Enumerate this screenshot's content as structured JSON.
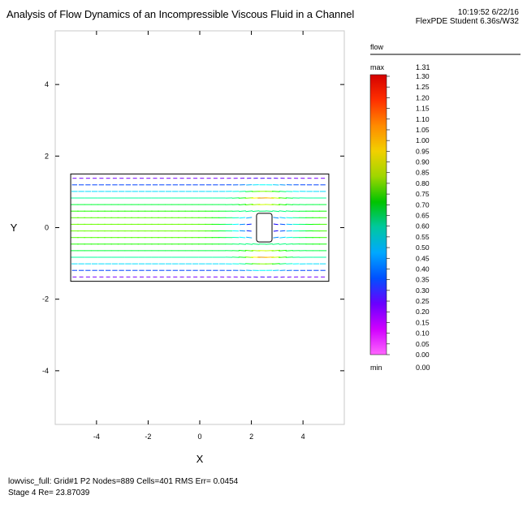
{
  "header": {
    "title": "Analysis of Flow Dynamics of an Incompressible Viscous Fluid in a Channel",
    "time": "10:19:52 6/22/16",
    "product": "FlexPDE Student 6.36s/W32"
  },
  "footer": {
    "line1": "lowvisc_full:  Grid#1  P2  Nodes=889 Cells=401 RMS Err= 0.0454",
    "line2": "Stage 4  Re=  23.87039"
  },
  "chart_data": {
    "type": "vector field",
    "xlabel": "X",
    "ylabel": "Y",
    "xlim": [
      -5.6,
      5.6
    ],
    "ylim": [
      -5.5,
      5.5
    ],
    "xticks": [
      -4,
      -2,
      0,
      2,
      4
    ],
    "yticks": [
      4,
      2,
      0,
      -2,
      -4
    ],
    "channel": {
      "x": [
        -5,
        5
      ],
      "y": [
        -1.5,
        1.5
      ]
    },
    "obstacle": {
      "x": [
        2.2,
        2.8
      ],
      "y": [
        -0.4,
        0.4
      ]
    },
    "legend": {
      "label": "flow",
      "max_label": "max",
      "min_label": "min",
      "max_value": "1.31",
      "min_value": "0.00",
      "levels": [
        "1.30",
        "1.25",
        "1.20",
        "1.15",
        "1.10",
        "1.05",
        "1.00",
        "0.95",
        "0.90",
        "0.85",
        "0.80",
        "0.75",
        "0.70",
        "0.65",
        "0.60",
        "0.55",
        "0.50",
        "0.45",
        "0.40",
        "0.35",
        "0.30",
        "0.25",
        "0.20",
        "0.15",
        "0.10",
        "0.05",
        "0.00"
      ]
    }
  }
}
